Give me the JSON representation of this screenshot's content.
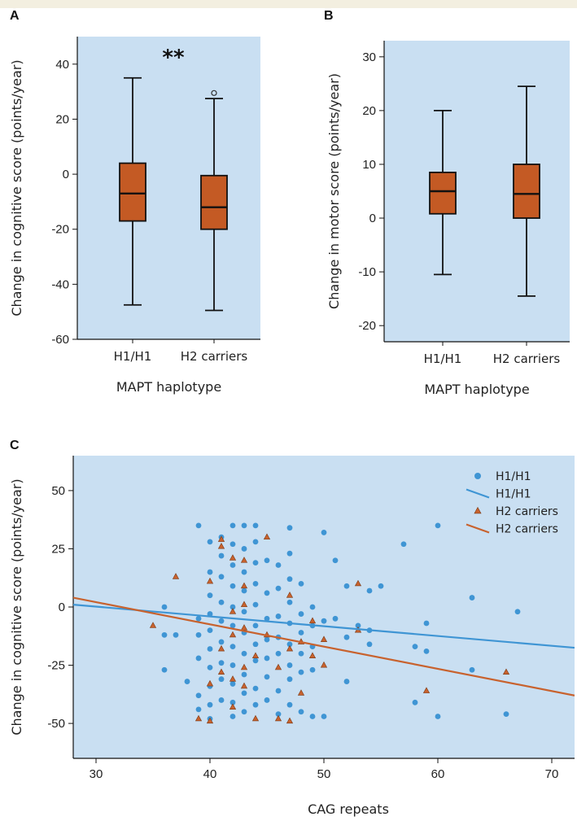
{
  "colors": {
    "plot_bg": "#c9dff2",
    "box_fill": "#c45a24",
    "h1_color": "#3f95d4",
    "h2_color": "#c8622e",
    "axis": "#111111"
  },
  "chart_data": [
    {
      "panel": "A",
      "type": "box",
      "categories": [
        "H1/H1",
        "H2 carriers"
      ],
      "xlabel": "MAPT haplotype",
      "ylabel": "Change in cognitive score (points/year)",
      "ylim": [
        -60,
        50
      ],
      "yticks": [
        -60,
        -40,
        -20,
        0,
        20,
        40
      ],
      "yticklabels": [
        "-60",
        "-40",
        "-20",
        "0",
        "20",
        "40"
      ],
      "significance": "**",
      "boxes": [
        {
          "category": "H1/H1",
          "whisker_low": -47.5,
          "q1": -17,
          "median": -7,
          "q3": 4,
          "whisker_high": 35
        },
        {
          "category": "H2 carriers",
          "whisker_low": -49.5,
          "q1": -20,
          "median": -12,
          "q3": -0.5,
          "whisker_high": 27.5,
          "outliers": [
            29.5
          ]
        }
      ]
    },
    {
      "panel": "B",
      "type": "box",
      "categories": [
        "H1/H1",
        "H2 carriers"
      ],
      "xlabel": "MAPT haplotype",
      "ylabel": "Change in motor score (points/year)",
      "ylim": [
        -23,
        33
      ],
      "yticks": [
        -20,
        -10,
        0,
        10,
        20,
        30
      ],
      "yticklabels": [
        "-20",
        "-10",
        "0",
        "10",
        "20",
        "30"
      ],
      "boxes": [
        {
          "category": "H1/H1",
          "whisker_low": -10.5,
          "q1": 0.8,
          "median": 5,
          "q3": 8.5,
          "whisker_high": 20
        },
        {
          "category": "H2 carriers",
          "whisker_low": -14.5,
          "q1": 0,
          "median": 4.5,
          "q3": 10,
          "whisker_high": 24.5
        }
      ]
    },
    {
      "panel": "C",
      "type": "scatter",
      "xlabel": "CAG repeats",
      "ylabel": "Change in cognitive score (points/year)",
      "xlim": [
        28,
        72
      ],
      "ylim": [
        -65,
        65
      ],
      "xticks": [
        30,
        40,
        50,
        60,
        70
      ],
      "xticklabels": [
        "30",
        "40",
        "50",
        "60",
        "70"
      ],
      "yticks": [
        -50,
        -25,
        0,
        25,
        50
      ],
      "yticklabels": [
        "-50",
        "-25",
        "0",
        "25",
        "50"
      ],
      "legend_position": "top-right",
      "series": [
        {
          "name": "H1/H1",
          "kind": "points",
          "marker": "circle",
          "points": [
            [
              36,
              0
            ],
            [
              36,
              -12
            ],
            [
              36,
              -27
            ],
            [
              37,
              -12
            ],
            [
              38,
              -32
            ],
            [
              39,
              35
            ],
            [
              39,
              -5
            ],
            [
              39,
              -12
            ],
            [
              39,
              -22
            ],
            [
              39,
              -38
            ],
            [
              39,
              -44
            ],
            [
              40,
              28
            ],
            [
              40,
              15
            ],
            [
              40,
              5
            ],
            [
              40,
              -3
            ],
            [
              40,
              -10
            ],
            [
              40,
              -18
            ],
            [
              40,
              -26
            ],
            [
              40,
              -34
            ],
            [
              40,
              -42
            ],
            [
              40,
              -48
            ],
            [
              41,
              30
            ],
            [
              41,
              22
            ],
            [
              41,
              13
            ],
            [
              41,
              2
            ],
            [
              41,
              -6
            ],
            [
              41,
              -15
            ],
            [
              41,
              -24
            ],
            [
              41,
              -31
            ],
            [
              41,
              -40
            ],
            [
              42,
              35
            ],
            [
              42,
              27
            ],
            [
              42,
              18
            ],
            [
              42,
              9
            ],
            [
              42,
              0
            ],
            [
              42,
              -8
            ],
            [
              42,
              -17
            ],
            [
              42,
              -25
            ],
            [
              42,
              -33
            ],
            [
              42,
              -41
            ],
            [
              42,
              -47
            ],
            [
              43,
              35
            ],
            [
              43,
              25
            ],
            [
              43,
              15
            ],
            [
              43,
              7
            ],
            [
              43,
              -2
            ],
            [
              43,
              -11
            ],
            [
              43,
              -20
            ],
            [
              43,
              -29
            ],
            [
              43,
              -37
            ],
            [
              43,
              -45
            ],
            [
              44,
              35
            ],
            [
              44,
              28
            ],
            [
              44,
              19
            ],
            [
              44,
              10
            ],
            [
              44,
              1
            ],
            [
              44,
              -8
            ],
            [
              44,
              -16
            ],
            [
              44,
              -23
            ],
            [
              44,
              -35
            ],
            [
              44,
              -42
            ],
            [
              45,
              20
            ],
            [
              45,
              6
            ],
            [
              45,
              -5
            ],
            [
              45,
              -14
            ],
            [
              45,
              -22
            ],
            [
              45,
              -30
            ],
            [
              45,
              -40
            ],
            [
              46,
              18
            ],
            [
              46,
              8
            ],
            [
              46,
              -4
            ],
            [
              46,
              -13
            ],
            [
              46,
              -20
            ],
            [
              46,
              -36
            ],
            [
              46,
              -46
            ],
            [
              47,
              34
            ],
            [
              47,
              23
            ],
            [
              47,
              12
            ],
            [
              47,
              2
            ],
            [
              47,
              -7
            ],
            [
              47,
              -16
            ],
            [
              47,
              -25
            ],
            [
              47,
              -31
            ],
            [
              47,
              -42
            ],
            [
              48,
              10
            ],
            [
              48,
              -3
            ],
            [
              48,
              -11
            ],
            [
              48,
              -20
            ],
            [
              48,
              -28
            ],
            [
              48,
              -45
            ],
            [
              49,
              0
            ],
            [
              49,
              -8
            ],
            [
              49,
              -17
            ],
            [
              49,
              -27
            ],
            [
              49,
              -47
            ],
            [
              50,
              32
            ],
            [
              50,
              -6
            ],
            [
              50,
              -47
            ],
            [
              51,
              20
            ],
            [
              51,
              -5
            ],
            [
              52,
              9
            ],
            [
              52,
              -13
            ],
            [
              52,
              -32
            ],
            [
              53,
              -8
            ],
            [
              54,
              7
            ],
            [
              54,
              -10
            ],
            [
              54,
              -16
            ],
            [
              55,
              9
            ],
            [
              57,
              27
            ],
            [
              58,
              -17
            ],
            [
              58,
              -41
            ],
            [
              59,
              -7
            ],
            [
              59,
              -19
            ],
            [
              60,
              35
            ],
            [
              60,
              -47
            ],
            [
              63,
              4
            ],
            [
              63,
              -27
            ],
            [
              66,
              -46
            ],
            [
              67,
              -2
            ]
          ]
        },
        {
          "name": "H1/H1",
          "kind": "line",
          "x": [
            28,
            72
          ],
          "y": [
            1.0,
            -17.5
          ]
        },
        {
          "name": "H2 carriers",
          "kind": "points",
          "marker": "triangle",
          "points": [
            [
              35,
              -8
            ],
            [
              37,
              13
            ],
            [
              39,
              -48
            ],
            [
              40,
              -49
            ],
            [
              40,
              -33
            ],
            [
              40,
              11
            ],
            [
              41,
              29
            ],
            [
              41,
              26
            ],
            [
              41,
              -18
            ],
            [
              41,
              -28
            ],
            [
              42,
              21
            ],
            [
              42,
              -2
            ],
            [
              42,
              -12
            ],
            [
              42,
              -31
            ],
            [
              42,
              -43
            ],
            [
              43,
              20
            ],
            [
              43,
              9
            ],
            [
              43,
              1
            ],
            [
              43,
              -9
            ],
            [
              43,
              -26
            ],
            [
              43,
              -34
            ],
            [
              44,
              -48
            ],
            [
              44,
              -21
            ],
            [
              45,
              30
            ],
            [
              45,
              -12
            ],
            [
              46,
              -26
            ],
            [
              46,
              -48
            ],
            [
              47,
              5
            ],
            [
              47,
              -18
            ],
            [
              47,
              -49
            ],
            [
              48,
              -15
            ],
            [
              48,
              -37
            ],
            [
              49,
              -6
            ],
            [
              49,
              -21
            ],
            [
              50,
              -14
            ],
            [
              50,
              -25
            ],
            [
              53,
              -10
            ],
            [
              53,
              10
            ],
            [
              59,
              -36
            ],
            [
              66,
              -28
            ]
          ]
        },
        {
          "name": "H2 carriers",
          "kind": "line",
          "x": [
            28,
            72
          ],
          "y": [
            4.0,
            -38.0
          ]
        }
      ]
    }
  ]
}
